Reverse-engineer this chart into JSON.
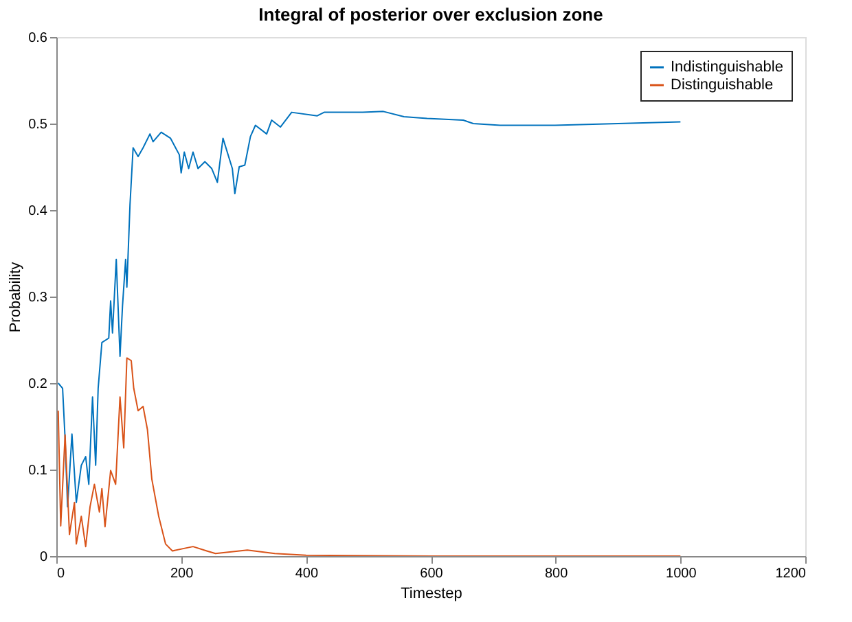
{
  "chart_data": {
    "type": "line",
    "title": "Integral of posterior over exclusion zone",
    "xlabel": "Timestep",
    "ylabel": "Probability",
    "xlim": [
      0,
      1200
    ],
    "ylim": [
      0,
      0.6
    ],
    "xticks": [
      0,
      200,
      400,
      600,
      800,
      1000,
      1200
    ],
    "yticks": [
      0,
      0.1,
      0.2,
      0.3,
      0.4,
      0.5,
      0.6
    ],
    "grid": false,
    "legend": "top right",
    "line_style": "solid",
    "marker": "none",
    "series": [
      {
        "name": "Indistinguishable",
        "color": "#0072bd",
        "x": [
          3,
          10,
          14,
          18,
          25,
          32,
          40,
          47,
          52,
          58,
          63,
          67,
          73,
          84,
          87,
          90,
          96,
          102,
          106,
          111,
          113,
          118,
          123,
          131,
          139,
          150,
          155,
          168,
          183,
          197,
          200,
          205,
          212,
          219,
          227,
          238,
          249,
          258,
          267,
          282,
          286,
          293,
          302,
          311,
          319,
          337,
          345,
          359,
          377,
          418,
          429,
          491,
          524,
          557,
          594,
          652,
          668,
          711,
          799,
          900,
          1000
        ],
        "values": [
          0.2,
          0.194,
          0.136,
          0.057,
          0.141,
          0.062,
          0.105,
          0.115,
          0.083,
          0.184,
          0.105,
          0.194,
          0.247,
          0.252,
          0.295,
          0.258,
          0.343,
          0.231,
          0.289,
          0.343,
          0.311,
          0.406,
          0.472,
          0.462,
          0.472,
          0.488,
          0.479,
          0.49,
          0.483,
          0.464,
          0.443,
          0.467,
          0.448,
          0.467,
          0.448,
          0.456,
          0.448,
          0.432,
          0.483,
          0.448,
          0.419,
          0.45,
          0.452,
          0.485,
          0.498,
          0.488,
          0.504,
          0.496,
          0.513,
          0.509,
          0.513,
          0.513,
          0.514,
          0.508,
          0.506,
          0.504,
          0.5,
          0.498,
          0.498,
          0.5,
          0.502
        ]
      },
      {
        "name": "Distinguishable",
        "color": "#d95319",
        "x": [
          3,
          7,
          14,
          21,
          29,
          32,
          40,
          47,
          54,
          61,
          69,
          73,
          78,
          87,
          95,
          102,
          108,
          113,
          120,
          124,
          131,
          139,
          146,
          153,
          164,
          175,
          186,
          219,
          241,
          255,
          306,
          350,
          400,
          600,
          800,
          1000
        ],
        "values": [
          0.168,
          0.035,
          0.14,
          0.025,
          0.062,
          0.014,
          0.046,
          0.011,
          0.057,
          0.083,
          0.051,
          0.078,
          0.034,
          0.099,
          0.083,
          0.184,
          0.125,
          0.229,
          0.226,
          0.194,
          0.168,
          0.173,
          0.146,
          0.089,
          0.046,
          0.014,
          0.006,
          0.011,
          0.006,
          0.003,
          0.007,
          0.003,
          0.001,
          0,
          0,
          0
        ]
      }
    ]
  }
}
